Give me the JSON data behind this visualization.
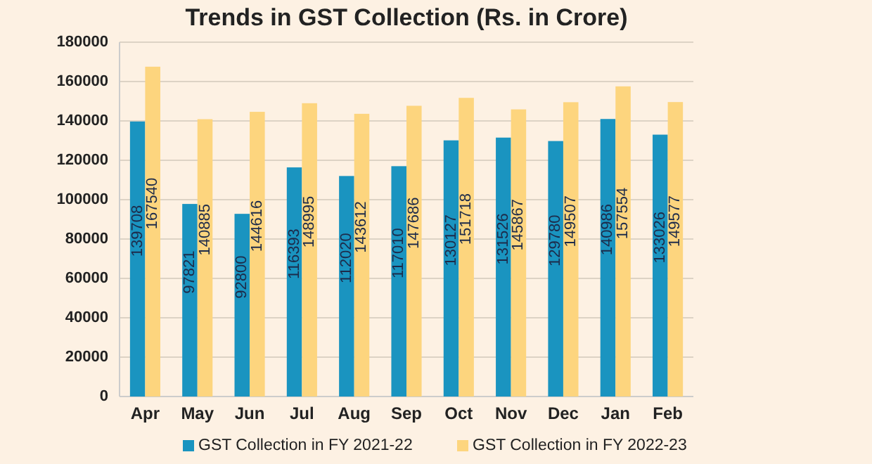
{
  "chart_data": {
    "type": "bar",
    "title": "Trends in GST Collection (Rs. in Crore)",
    "categories": [
      "Apr",
      "May",
      "Jun",
      "Jul",
      "Aug",
      "Sep",
      "Oct",
      "Nov",
      "Dec",
      "Jan",
      "Feb"
    ],
    "series": [
      {
        "name": "GST Collection in FY 2021-22",
        "color": "#1a94c0",
        "values": [
          139708,
          97821,
          92800,
          116393,
          112020,
          117010,
          130127,
          131526,
          129780,
          140986,
          133026
        ]
      },
      {
        "name": "GST Collection in FY 2022-23",
        "color": "#fdd57e",
        "values": [
          167540,
          140885,
          144616,
          148995,
          143612,
          147686,
          151718,
          145867,
          149507,
          157554,
          149577
        ]
      }
    ],
    "ylim": [
      0,
      180000
    ],
    "yticks": [
      0,
      20000,
      40000,
      60000,
      80000,
      100000,
      120000,
      140000,
      160000,
      180000
    ],
    "grid": "y",
    "legend": "bottom",
    "data_labels": true
  }
}
